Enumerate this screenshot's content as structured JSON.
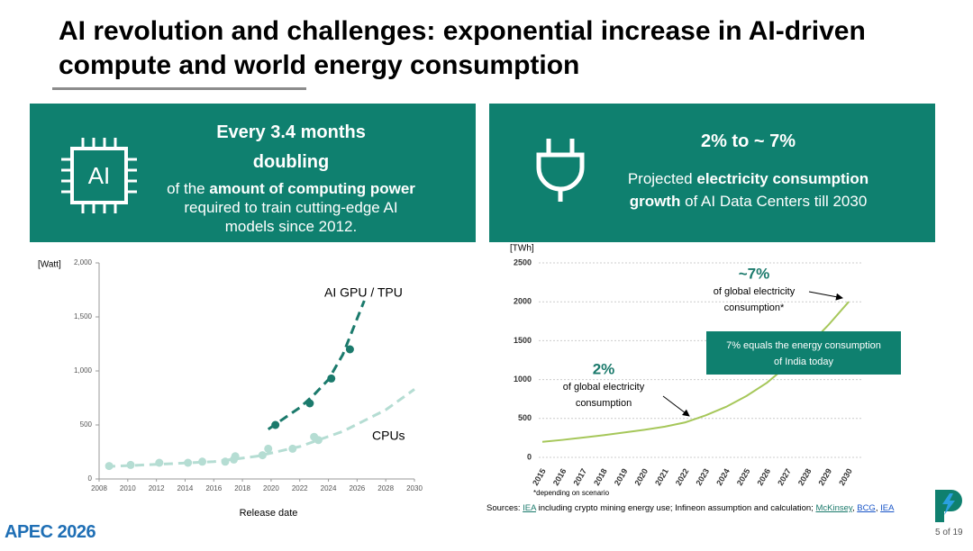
{
  "header": {
    "title": "AI revolution and challenges: exponential increase in AI-driven compute and world energy consumption"
  },
  "panels": [
    {
      "icon_label": "AI",
      "headline": [
        "Every 3.4 months",
        "doubling"
      ],
      "text": [
        "of the ",
        "amount of computing power",
        " required to train cutting-edge AI models since 2012."
      ]
    },
    {
      "headline": [
        "2% to ~ 7%"
      ],
      "text": [
        "Projected ",
        "electricity consumption growth",
        " of AI Data Centers till 2030"
      ]
    }
  ],
  "chart_data": [
    {
      "type": "scatter",
      "y_label": "[Watt]",
      "x_label": "Release date",
      "xlim": [
        2008,
        2030
      ],
      "xticks": [
        2008,
        2010,
        2012,
        2014,
        2016,
        2018,
        2020,
        2022,
        2024,
        2026,
        2028,
        2030
      ],
      "ylim": [
        0,
        2000
      ],
      "yticks": [
        0,
        500,
        {
          "value": 1000,
          "label": "1,000"
        },
        {
          "value": 1500,
          "label": "1,500"
        },
        {
          "value": 2000,
          "label": "2,000"
        }
      ],
      "series": [
        {
          "name": "AI GPU / TPU",
          "color": "#1b7a6c",
          "x": [
            2020.3,
            2022.7,
            2024.2,
            2025.5
          ],
          "values": [
            500,
            700,
            930,
            1200
          ],
          "trend": {
            "x": [
              2019.8,
              2021,
              2022,
              2023,
              2024,
              2025,
              2026.5
            ],
            "values": [
              460,
              570,
              660,
              780,
              920,
              1150,
              1650
            ]
          }
        },
        {
          "name": "CPUs",
          "color": "#b5ddd3",
          "x": [
            2008.7,
            2010.2,
            2012.2,
            2014.2,
            2015.2,
            2016.8,
            2017.5,
            2017.4,
            2019.4,
            2019.8,
            2021.5,
            2023,
            2023.3
          ],
          "values": [
            120,
            130,
            150,
            150,
            160,
            160,
            210,
            180,
            220,
            280,
            280,
            390,
            360
          ],
          "trend": {
            "x": [
              2008.5,
              2012,
              2016,
              2019,
              2022,
              2025,
              2028,
              2030
            ],
            "values": [
              115,
              135,
              160,
              210,
              300,
              440,
              640,
              830
            ]
          }
        }
      ]
    },
    {
      "type": "line",
      "y_label": "[TWh]",
      "color": "#a6c75a",
      "categories": [
        "2015",
        "2016",
        "2017",
        "2018",
        "2019",
        "2020",
        "2021",
        "2022",
        "2023",
        "2024",
        "2025",
        "2026",
        "2027",
        "2028",
        "2029",
        "2030"
      ],
      "values": [
        200,
        225,
        255,
        285,
        320,
        355,
        395,
        450,
        540,
        650,
        790,
        960,
        1180,
        1430,
        1700,
        2000
      ],
      "ylim": [
        0,
        2500
      ],
      "yticks": [
        0,
        500,
        1000,
        1500,
        2000,
        2500
      ],
      "grid": true,
      "note": "*depending on scenario",
      "annotations": [
        {
          "headline": "2%",
          "lines": [
            "of global electricity",
            "consumption"
          ]
        },
        {
          "headline": "~7%",
          "lines": [
            "of global electricity",
            "consumption*"
          ]
        },
        {
          "lines": [
            "7% equals the energy consumption",
            "of India today"
          ]
        }
      ]
    }
  ],
  "footer": {
    "sources": [
      "Sources: ",
      "IEA",
      " including crypto mining energy use; Infineon assumption and calculation; ",
      "McKinsey",
      ", ",
      "BCG",
      ", ",
      "IEA"
    ],
    "logo": "APEC 2026",
    "page": "5 of 19"
  }
}
